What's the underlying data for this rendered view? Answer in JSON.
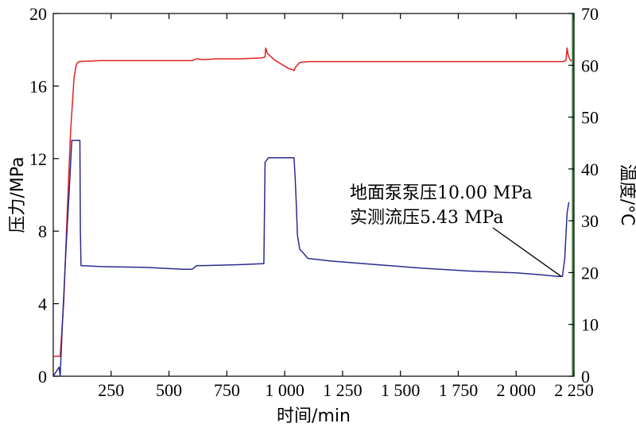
{
  "chart_data": {
    "type": "line",
    "xlabel": "时间/min",
    "ylabel_left": "压力/MPa",
    "ylabel_right": "温度/°C",
    "xlim": [
      0,
      2250
    ],
    "ylim_left": [
      0,
      20
    ],
    "ylim_right": [
      0,
      70
    ],
    "x_ticks": [
      {
        "value": 250,
        "label": "250"
      },
      {
        "value": 500,
        "label": "500"
      },
      {
        "value": 750,
        "label": "750"
      },
      {
        "value": 1000,
        "label": "1 000"
      },
      {
        "value": 1250,
        "label": "1 250"
      },
      {
        "value": 1500,
        "label": "1 500"
      },
      {
        "value": 1750,
        "label": "1 750"
      },
      {
        "value": 2000,
        "label": "2 000"
      },
      {
        "value": 2250,
        "label": "2 250"
      }
    ],
    "y_ticks_left": [
      {
        "value": 0,
        "label": "0"
      },
      {
        "value": 4,
        "label": "4"
      },
      {
        "value": 8,
        "label": "8"
      },
      {
        "value": 12,
        "label": "12"
      },
      {
        "value": 16,
        "label": "16"
      },
      {
        "value": 20,
        "label": "20"
      }
    ],
    "y_ticks_right": [
      {
        "value": 0,
        "label": "0"
      },
      {
        "value": 10,
        "label": "10"
      },
      {
        "value": 20,
        "label": "20"
      },
      {
        "value": 30,
        "label": "30"
      },
      {
        "value": 40,
        "label": "40"
      },
      {
        "value": 50,
        "label": "50"
      },
      {
        "value": 60,
        "label": "60"
      },
      {
        "value": 70,
        "label": "70"
      }
    ],
    "series": [
      {
        "axis": "left",
        "color": "#e32222",
        "points": [
          [
            0,
            1.1
          ],
          [
            30,
            1.1
          ],
          [
            45,
            4
          ],
          [
            60,
            9
          ],
          [
            75,
            13.5
          ],
          [
            90,
            16.5
          ],
          [
            100,
            17.2
          ],
          [
            110,
            17.35
          ],
          [
            200,
            17.4
          ],
          [
            400,
            17.4
          ],
          [
            600,
            17.4
          ],
          [
            620,
            17.5
          ],
          [
            650,
            17.45
          ],
          [
            700,
            17.5
          ],
          [
            800,
            17.5
          ],
          [
            900,
            17.55
          ],
          [
            915,
            17.6
          ],
          [
            918,
            18.1
          ],
          [
            925,
            17.8
          ],
          [
            960,
            17.4
          ],
          [
            1000,
            17.1
          ],
          [
            1020,
            16.95
          ],
          [
            1035,
            16.9
          ],
          [
            1040,
            16.85
          ],
          [
            1045,
            17.0
          ],
          [
            1050,
            17.1
          ],
          [
            1065,
            17.3
          ],
          [
            1100,
            17.35
          ],
          [
            1300,
            17.35
          ],
          [
            1500,
            17.35
          ],
          [
            1700,
            17.35
          ],
          [
            1900,
            17.35
          ],
          [
            2100,
            17.35
          ],
          [
            2200,
            17.35
          ],
          [
            2215,
            17.4
          ],
          [
            2220,
            18.1
          ],
          [
            2225,
            17.7
          ],
          [
            2235,
            17.4
          ],
          [
            2245,
            17.4
          ]
        ]
      },
      {
        "axis": "left",
        "color": "#2b2b90",
        "points": [
          [
            0,
            0
          ],
          [
            25,
            0.5
          ],
          [
            30,
            0
          ],
          [
            40,
            3
          ],
          [
            55,
            7
          ],
          [
            70,
            10.5
          ],
          [
            80,
            13.0
          ],
          [
            115,
            13.0
          ],
          [
            117,
            8
          ],
          [
            120,
            6.1
          ],
          [
            200,
            6.05
          ],
          [
            400,
            6.0
          ],
          [
            560,
            5.9
          ],
          [
            600,
            5.9
          ],
          [
            620,
            6.1
          ],
          [
            650,
            6.1
          ],
          [
            800,
            6.15
          ],
          [
            900,
            6.2
          ],
          [
            910,
            6.2
          ],
          [
            915,
            11.8
          ],
          [
            930,
            12.05
          ],
          [
            1040,
            12.05
          ],
          [
            1045,
            11.0
          ],
          [
            1050,
            9.5
          ],
          [
            1055,
            7.8
          ],
          [
            1065,
            7.0
          ],
          [
            1080,
            6.8
          ],
          [
            1100,
            6.5
          ],
          [
            1200,
            6.35
          ],
          [
            1400,
            6.15
          ],
          [
            1600,
            5.95
          ],
          [
            1800,
            5.8
          ],
          [
            2000,
            5.7
          ],
          [
            2100,
            5.6
          ],
          [
            2180,
            5.5
          ],
          [
            2200,
            5.5
          ],
          [
            2210,
            6.5
          ],
          [
            2220,
            9.0
          ],
          [
            2228,
            9.6
          ]
        ]
      },
      {
        "axis": "right",
        "color": "#2e7d32",
        "points": [
          [
            2245,
            0
          ],
          [
            2245,
            70
          ]
        ]
      }
    ],
    "annotation": {
      "lines": [
        "地面泵泵压10.00 MPa",
        "实测流压5.43 MPa"
      ],
      "target": [
        2195,
        5.5
      ]
    }
  }
}
